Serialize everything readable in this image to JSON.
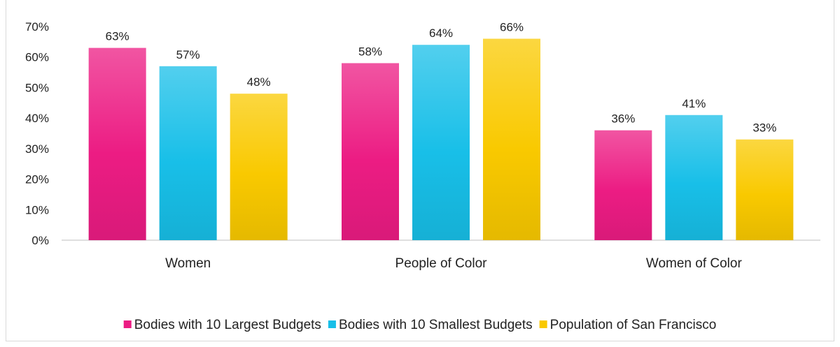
{
  "chart_data": {
    "type": "bar",
    "title": "",
    "xlabel": "",
    "ylabel": "",
    "categories": [
      "Women",
      "People of Color",
      "Women of Color"
    ],
    "series": [
      {
        "name": "Bodies with 10 Largest Budgets",
        "values": [
          63,
          58,
          36
        ],
        "labels": [
          "63%",
          "58%",
          "36%"
        ],
        "color": "#ec1c83"
      },
      {
        "name": "Bodies with 10 Smallest Budgets",
        "values": [
          57,
          64,
          41
        ],
        "labels": [
          "57%",
          "64%",
          "41%"
        ],
        "color": "#18bfe8"
      },
      {
        "name": "Population of San Francisco",
        "values": [
          48,
          66,
          33
        ],
        "labels": [
          "48%",
          "66%",
          "33%"
        ],
        "color": "#f9c900"
      }
    ],
    "ylim": [
      0,
      70
    ],
    "yticks": [
      "0%",
      "10%",
      "20%",
      "30%",
      "40%",
      "50%",
      "60%",
      "70%"
    ],
    "grid": false,
    "legend_position": "bottom"
  }
}
